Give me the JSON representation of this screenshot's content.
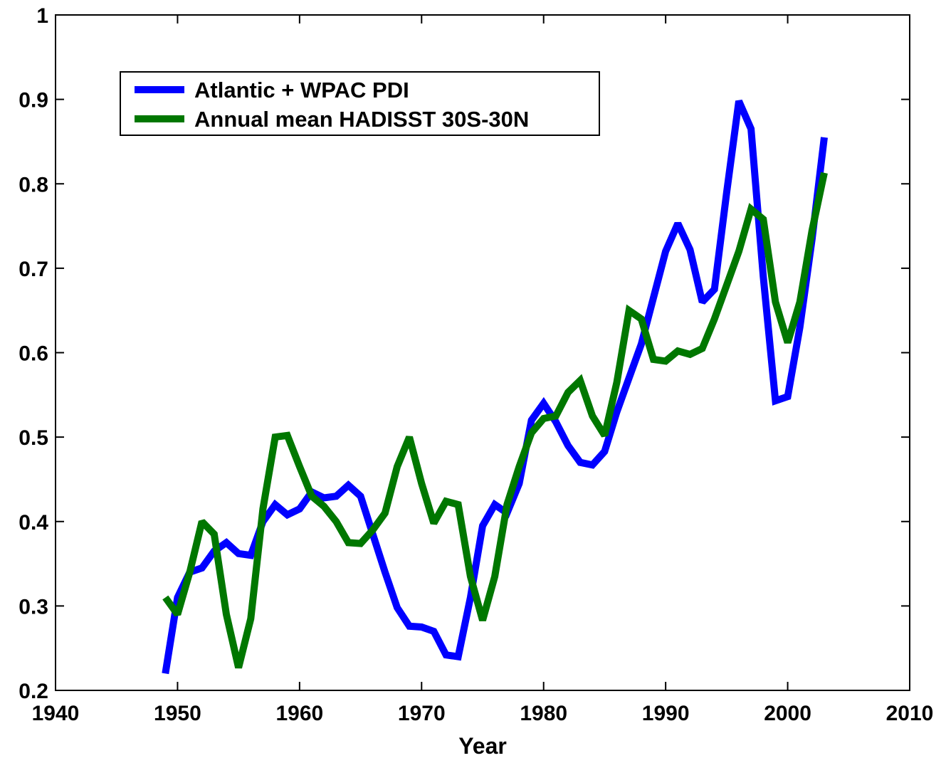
{
  "chart_data": {
    "type": "line",
    "title": "",
    "xlabel": "Year",
    "ylabel": "",
    "xlim": [
      1940,
      2010
    ],
    "ylim": [
      0.2,
      1.0
    ],
    "xticks": [
      1940,
      1950,
      1960,
      1970,
      1980,
      1990,
      2000,
      2010
    ],
    "yticks": [
      0.2,
      0.3,
      0.4,
      0.5,
      0.6,
      0.7,
      0.8,
      0.9,
      1.0
    ],
    "xtick_labels": [
      "1940",
      "1950",
      "1960",
      "1970",
      "1980",
      "1990",
      "2000",
      "2010"
    ],
    "ytick_labels": [
      "0.2",
      "0.3",
      "0.4",
      "0.5",
      "0.6",
      "0.7",
      "0.8",
      "0.9",
      "1"
    ],
    "grid": false,
    "legend_position": "top-left",
    "x": [
      1949,
      1950,
      1951,
      1952,
      1953,
      1954,
      1955,
      1956,
      1957,
      1958,
      1959,
      1960,
      1961,
      1962,
      1963,
      1964,
      1965,
      1966,
      1967,
      1968,
      1969,
      1970,
      1971,
      1972,
      1973,
      1974,
      1975,
      1976,
      1977,
      1978,
      1979,
      1980,
      1981,
      1982,
      1983,
      1984,
      1985,
      1986,
      1987,
      1988,
      1989,
      1990,
      1991,
      1992,
      1993,
      1994,
      1995,
      1996,
      1997,
      1998,
      1999,
      2000,
      2001,
      2002,
      2003
    ],
    "series": [
      {
        "name": "Atlantic + WPAC PDI",
        "color": "#0000ff",
        "values": [
          0.22,
          0.31,
          0.34,
          0.345,
          0.365,
          0.375,
          0.362,
          0.36,
          0.4,
          0.42,
          0.408,
          0.415,
          0.435,
          0.428,
          0.43,
          0.443,
          0.43,
          0.385,
          0.34,
          0.298,
          0.276,
          0.275,
          0.27,
          0.242,
          0.24,
          0.31,
          0.395,
          0.42,
          0.41,
          0.445,
          0.52,
          0.54,
          0.518,
          0.49,
          0.47,
          0.467,
          0.483,
          0.53,
          0.57,
          0.61,
          0.665,
          0.72,
          0.753,
          0.722,
          0.66,
          0.675,
          0.79,
          0.898,
          0.865,
          0.69,
          0.543,
          0.548,
          0.63,
          0.735,
          0.855
        ]
      },
      {
        "name": "Annual mean HADISST 30S-30N",
        "color": "#007700",
        "values": [
          0.31,
          0.29,
          0.34,
          0.4,
          0.385,
          0.29,
          0.227,
          0.285,
          0.415,
          0.5,
          0.502,
          0.465,
          0.43,
          0.418,
          0.4,
          0.375,
          0.374,
          0.39,
          0.41,
          0.465,
          0.5,
          0.445,
          0.398,
          0.424,
          0.42,
          0.335,
          0.283,
          0.335,
          0.42,
          0.465,
          0.505,
          0.522,
          0.525,
          0.553,
          0.567,
          0.525,
          0.502,
          0.565,
          0.65,
          0.64,
          0.592,
          0.59,
          0.602,
          0.598,
          0.605,
          0.64,
          0.68,
          0.72,
          0.77,
          0.758,
          0.66,
          0.612,
          0.66,
          0.745,
          0.813
        ]
      }
    ]
  }
}
